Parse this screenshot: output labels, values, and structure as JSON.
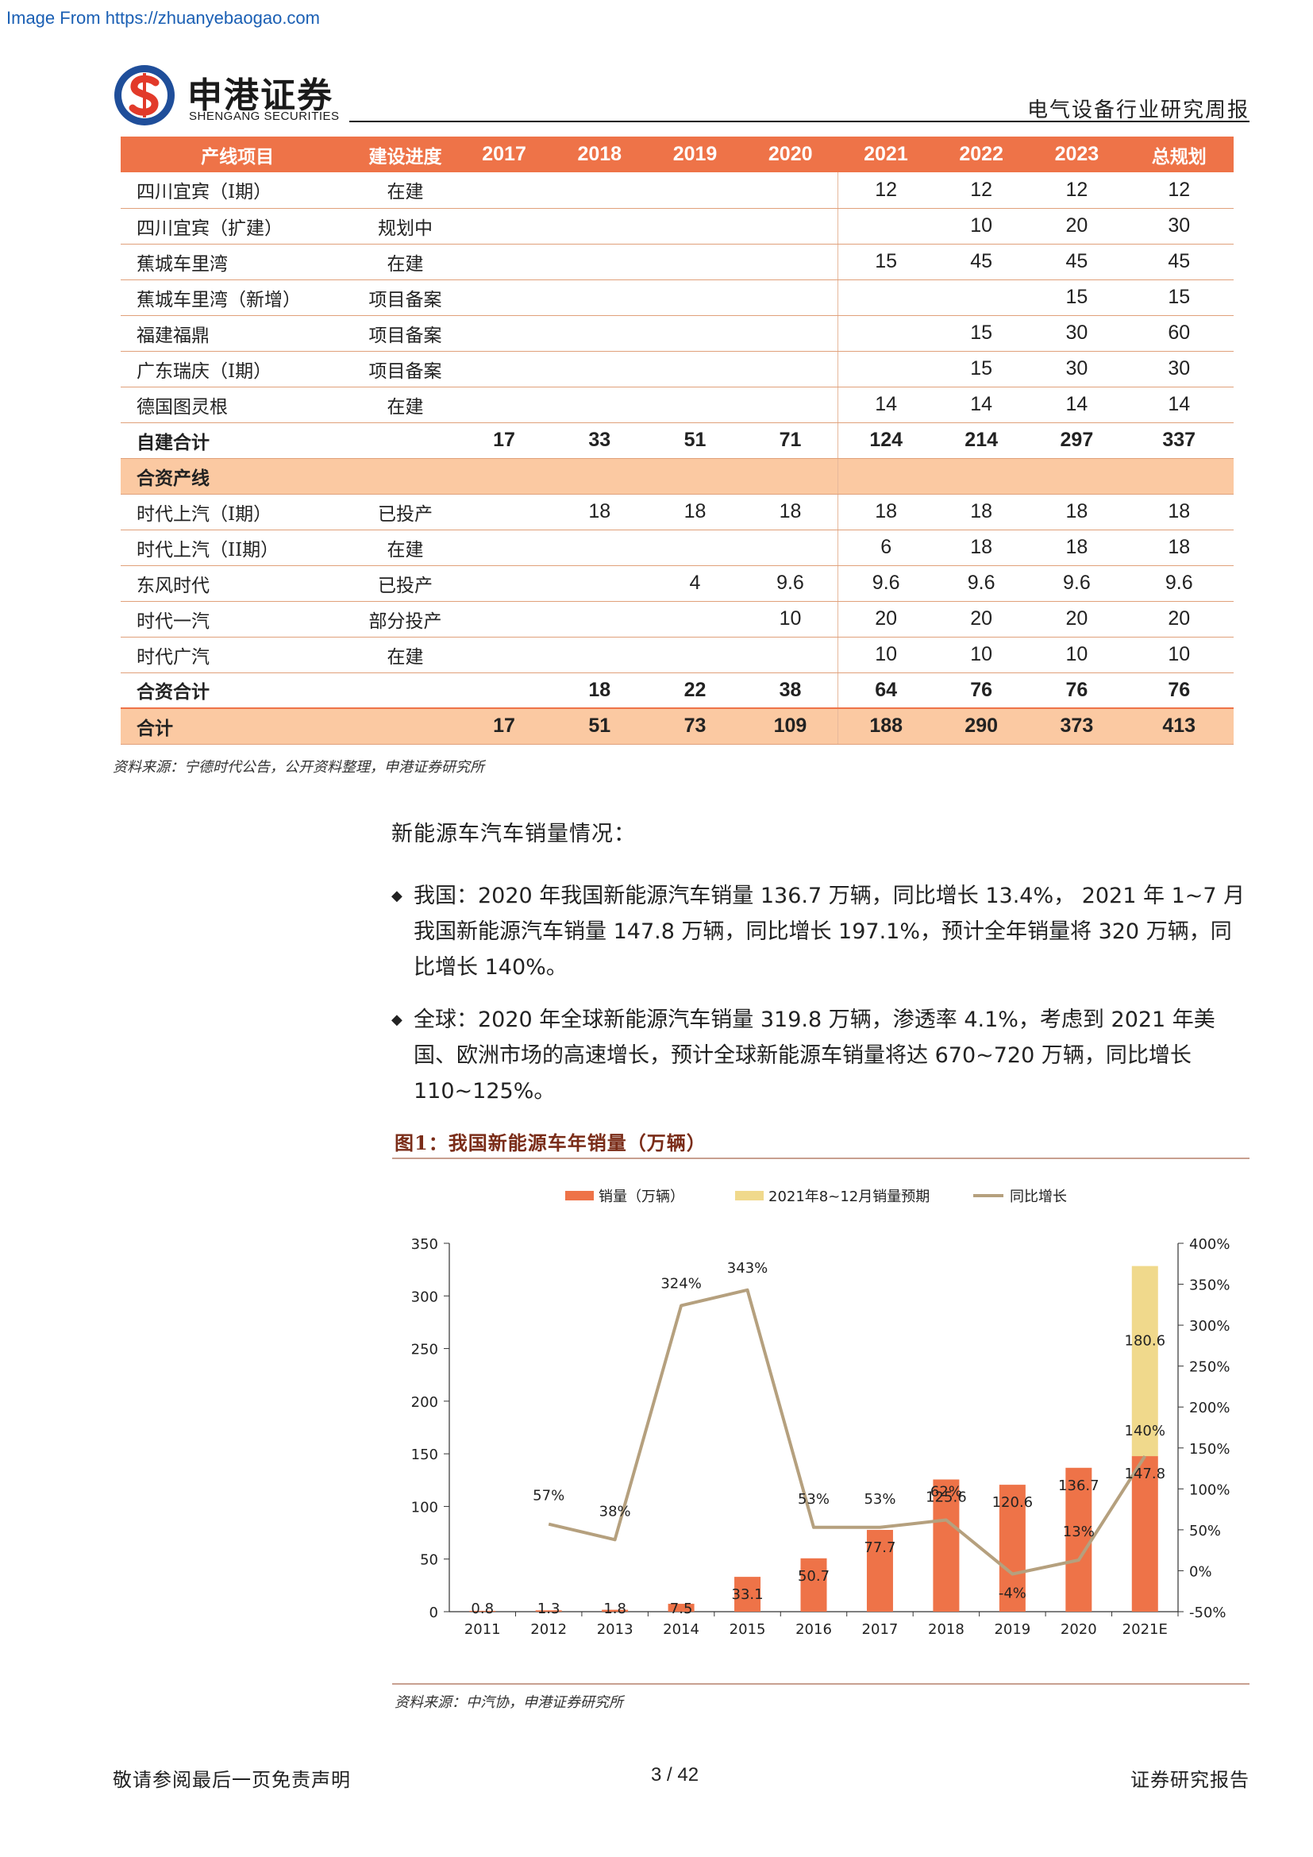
{
  "source_banner": "Image From https://zhuanyebaogao.com",
  "header": {
    "logo_cn": "申港证券",
    "logo_en": "SHENGANG SECURITIES",
    "report_type": "电气设备行业研究周报"
  },
  "colors": {
    "accent": "#ee7348",
    "peach": "#fbc9a2",
    "forecast": "#f0d98c",
    "line": "#b5a07e"
  },
  "table": {
    "headers": [
      "产线项目",
      "建设进度",
      "2017",
      "2018",
      "2019",
      "2020",
      "2021",
      "2022",
      "2023",
      "总规划"
    ],
    "rows": [
      {
        "cells": [
          "四川宜宾（I期）",
          "在建",
          "",
          "",
          "",
          "",
          "12",
          "12",
          "12",
          "12"
        ]
      },
      {
        "cells": [
          "四川宜宾（扩建）",
          "规划中",
          "",
          "",
          "",
          "",
          "",
          "10",
          "20",
          "30"
        ]
      },
      {
        "cells": [
          "蕉城车里湾",
          "在建",
          "",
          "",
          "",
          "",
          "15",
          "45",
          "45",
          "45"
        ]
      },
      {
        "cells": [
          "蕉城车里湾（新增）",
          "项目备案",
          "",
          "",
          "",
          "",
          "",
          "",
          "15",
          "15"
        ]
      },
      {
        "cells": [
          "福建福鼎",
          "项目备案",
          "",
          "",
          "",
          "",
          "",
          "15",
          "30",
          "60"
        ]
      },
      {
        "cells": [
          "广东瑞庆（I期）",
          "项目备案",
          "",
          "",
          "",
          "",
          "",
          "15",
          "30",
          "30"
        ]
      },
      {
        "cells": [
          "德国图灵根",
          "在建",
          "",
          "",
          "",
          "",
          "14",
          "14",
          "14",
          "14"
        ]
      },
      {
        "cells": [
          "自建合计",
          "",
          "17",
          "33",
          "51",
          "71",
          "124",
          "214",
          "297",
          "337"
        ],
        "style": "bold"
      },
      {
        "cells": [
          "合资产线",
          "",
          "",
          "",
          "",
          "",
          "",
          "",
          "",
          ""
        ],
        "style": "bold peach"
      },
      {
        "cells": [
          "时代上汽（I期）",
          "已投产",
          "",
          "18",
          "18",
          "18",
          "18",
          "18",
          "18",
          "18"
        ]
      },
      {
        "cells": [
          "时代上汽（II期）",
          "在建",
          "",
          "",
          "",
          "",
          "6",
          "18",
          "18",
          "18"
        ]
      },
      {
        "cells": [
          "东风时代",
          "已投产",
          "",
          "",
          "4",
          "9.6",
          "9.6",
          "9.6",
          "9.6",
          "9.6"
        ]
      },
      {
        "cells": [
          "时代一汽",
          "部分投产",
          "",
          "",
          "",
          "10",
          "20",
          "20",
          "20",
          "20"
        ]
      },
      {
        "cells": [
          "时代广汽",
          "在建",
          "",
          "",
          "",
          "",
          "10",
          "10",
          "10",
          "10"
        ]
      },
      {
        "cells": [
          "合资合计",
          "",
          "",
          "18",
          "22",
          "38",
          "64",
          "76",
          "76",
          "76"
        ],
        "style": "bold"
      },
      {
        "cells": [
          "合计",
          "",
          "17",
          "51",
          "73",
          "109",
          "188",
          "290",
          "373",
          "413"
        ],
        "style": "bold peach total"
      }
    ],
    "source": "资料来源：宁德时代公告，公开资料整理，申港证券研究所"
  },
  "section_label": "新能源车汽车销量情况：",
  "bullets": [
    "我国：2020 年我国新能源汽车销量 136.7 万辆，同比增长 13.4%， 2021 年 1~7 月我国新能源汽车销量 147.8 万辆，同比增长 197.1%，预计全年销量将 320 万辆，同比增长 140%。",
    "全球：2020 年全球新能源汽车销量 319.8 万辆，渗透率 4.1%，考虑到 2021 年美国、欧洲市场的高速增长，预计全球新能源车销量将达 670~720 万辆，同比增长 110~125%。"
  ],
  "figure": {
    "title": "图1：我国新能源车年销量（万辆）",
    "source": "资料来源：中汽协，申港证券研究所"
  },
  "chart_data": {
    "type": "bar",
    "categories": [
      "2011",
      "2012",
      "2013",
      "2014",
      "2015",
      "2016",
      "2017",
      "2018",
      "2019",
      "2020",
      "2021E"
    ],
    "series": [
      {
        "name": "销量（万辆）",
        "type": "bar",
        "values": [
          0.8,
          1.3,
          1.8,
          7.5,
          33.1,
          50.7,
          77.7,
          125.6,
          120.6,
          136.7,
          147.8
        ],
        "labels": [
          "0.8",
          "1.3",
          "1.8",
          "7.5",
          "33.1",
          "50.7",
          "77.7",
          "125.6",
          "120.6",
          "136.7",
          "147.8"
        ]
      },
      {
        "name": "2021年8~12月销量预期",
        "type": "bar-stacked",
        "values": [
          null,
          null,
          null,
          null,
          null,
          null,
          null,
          null,
          null,
          null,
          180.6
        ],
        "labels": [
          "",
          "",
          "",
          "",
          "",
          "",
          "",
          "",
          "",
          "",
          "180.6"
        ]
      },
      {
        "name": "同比增长",
        "type": "line",
        "axis": "right",
        "values": [
          null,
          57,
          38,
          324,
          343,
          53,
          53,
          62,
          -4,
          13,
          140
        ],
        "labels": [
          "",
          "57%",
          "38%",
          "324%",
          "343%",
          "53%",
          "53%",
          "62%",
          "-4%",
          "13%",
          "140%"
        ]
      }
    ],
    "ylim": [
      0,
      350
    ],
    "yticks": [
      "0",
      "50",
      "100",
      "150",
      "200",
      "250",
      "300",
      "350"
    ],
    "y2lim": [
      -50,
      400
    ],
    "y2ticks": [
      "-50%",
      "0%",
      "50%",
      "100%",
      "150%",
      "200%",
      "250%",
      "300%",
      "350%",
      "400%"
    ],
    "legend_position": "top"
  },
  "footer": {
    "left": "敬请参阅最后一页免责声明",
    "page": "3 / 42",
    "right": "证券研究报告"
  }
}
